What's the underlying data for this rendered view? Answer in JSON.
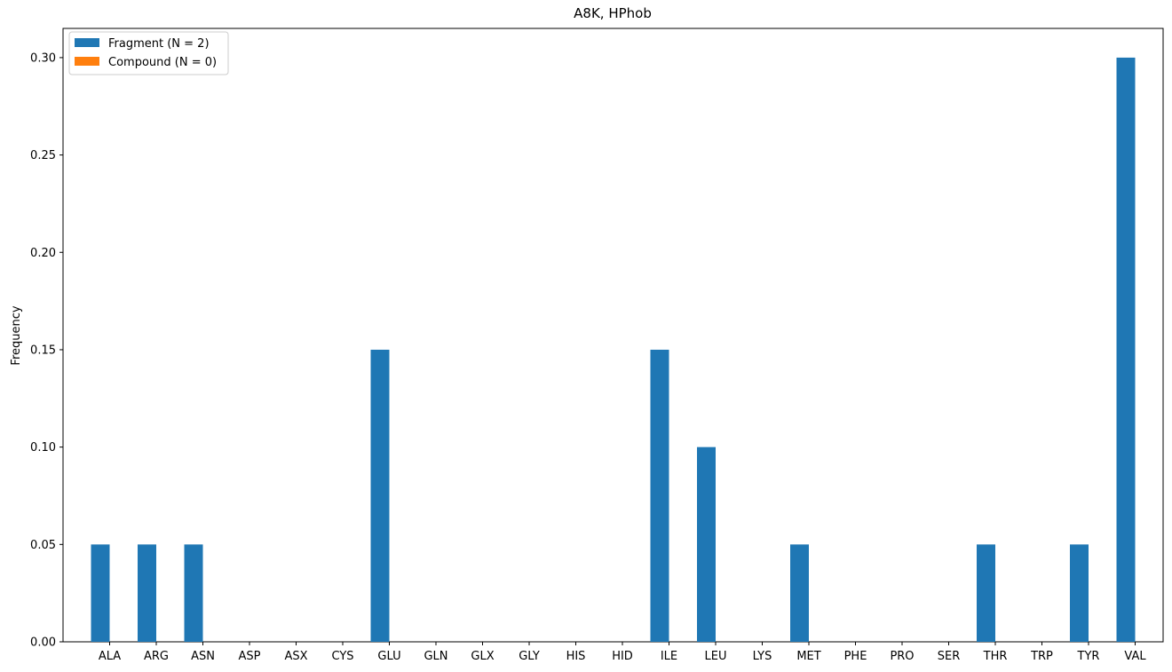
{
  "chart_data": {
    "type": "bar",
    "title": "A8K, HPhob",
    "xlabel": "",
    "ylabel": "Frequency",
    "categories": [
      "ALA",
      "ARG",
      "ASN",
      "ASP",
      "ASX",
      "CYS",
      "GLU",
      "GLN",
      "GLX",
      "GLY",
      "HIS",
      "HID",
      "ILE",
      "LEU",
      "LYS",
      "MET",
      "PHE",
      "PRO",
      "SER",
      "THR",
      "TRP",
      "TYR",
      "VAL"
    ],
    "series": [
      {
        "name": "Fragment (N = 2)",
        "color": "#1f77b4",
        "values": [
          0.05,
          0.05,
          0.05,
          0,
          0,
          0,
          0.15,
          0,
          0,
          0,
          0,
          0,
          0.15,
          0.1,
          0,
          0.05,
          0,
          0,
          0,
          0.05,
          0,
          0.05,
          0.3
        ]
      },
      {
        "name": "Compound (N = 0)",
        "color": "#ff7f0e",
        "values": [
          0,
          0,
          0,
          0,
          0,
          0,
          0,
          0,
          0,
          0,
          0,
          0,
          0,
          0,
          0,
          0,
          0,
          0,
          0,
          0,
          0,
          0,
          0
        ]
      }
    ],
    "ylim": [
      0,
      0.315
    ],
    "yticks": [
      "0.00",
      "0.05",
      "0.10",
      "0.15",
      "0.20",
      "0.25",
      "0.30"
    ],
    "legend_position": "top-left",
    "grid": false
  }
}
